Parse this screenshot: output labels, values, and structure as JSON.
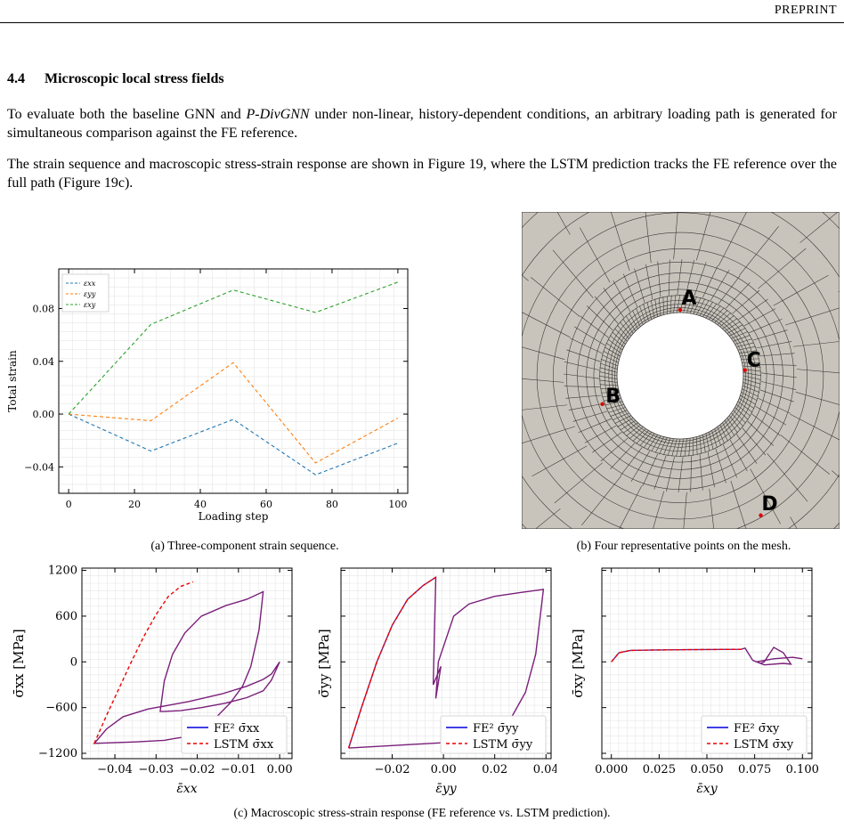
{
  "header": {
    "label": "PREPRINT"
  },
  "section": {
    "number": "4.4",
    "title": "Microscopic local stress fields"
  },
  "paragraphs": {
    "p1a": "To evaluate both the baseline GNN and ",
    "p1em": "P-DivGNN",
    "p1b": " under non-linear, history-dependent conditions, an arbitrary loading path is generated for simultaneous comparison against the FE reference.",
    "p2": "The strain sequence and macroscopic stress-strain response are shown in Figure 19, where the LSTM prediction tracks the FE reference over the full path (Figure 19c)."
  },
  "captions": {
    "a": "(a) Three-component strain sequence.",
    "b": "(b) Four representative points on the mesh.",
    "c": "(c) Macroscopic stress-strain response (FE reference vs. LSTM prediction)."
  },
  "mesh": {
    "colors": {
      "fill": "#c9c4bb",
      "line": "#3a3a3a",
      "marker": "#e00000"
    },
    "points": [
      {
        "label": "A",
        "angle_deg": 90
      },
      {
        "label": "B",
        "angle_deg": 200
      },
      {
        "label": "C",
        "angle_deg": 5
      },
      {
        "label": "D",
        "angle_deg": 300
      }
    ]
  },
  "chart_data": [
    {
      "id": "strain",
      "type": "line",
      "xlabel": "Loading step",
      "ylabel": "Total strain",
      "xlim": [
        -3,
        103
      ],
      "ylim": [
        -0.06,
        0.11
      ],
      "xticks": [
        0,
        20,
        40,
        60,
        80,
        100
      ],
      "xticklabels": [
        "0",
        "20",
        "40",
        "60",
        "80",
        "100"
      ],
      "yticks": [
        -0.04,
        0.0,
        0.04,
        0.08
      ],
      "yticklabels": [
        "−0.04",
        "0.00",
        "0.04",
        "0.08"
      ],
      "grid": true,
      "legend": "top-left",
      "x": [
        0,
        25,
        50,
        75,
        100
      ],
      "series": [
        {
          "name": "εxx",
          "color": "#1f77b4",
          "values": [
            0.0,
            -0.028,
            -0.004,
            -0.046,
            -0.022
          ]
        },
        {
          "name": "εyy",
          "color": "#ff7f0e",
          "values": [
            0.0,
            -0.005,
            0.039,
            -0.037,
            -0.003
          ]
        },
        {
          "name": "εxy",
          "color": "#2ca02c",
          "values": [
            0.0,
            0.068,
            0.094,
            0.077,
            0.1
          ]
        }
      ]
    },
    {
      "id": "sxx",
      "type": "line",
      "xlabel": "ε̄xx",
      "ylabel": "σ̄xx [MPa]",
      "xlim": [
        -0.048,
        0.003
      ],
      "ylim": [
        -1270,
        1230
      ],
      "xticks": [
        -0.04,
        -0.03,
        -0.02,
        -0.01,
        0.0
      ],
      "xticklabels": [
        "−0.04",
        "−0.03",
        "−0.02",
        "−0.01",
        "0.00"
      ],
      "yticks": [
        -1200,
        -600,
        0,
        600,
        1200
      ],
      "yticklabels": [
        "−1200",
        "−600",
        "0",
        "600",
        "1200"
      ],
      "grid": true,
      "legend": "bottom-right",
      "series": [
        {
          "name": "FE² σ̄xx",
          "color": "#0000dd",
          "style": "solid",
          "points": [
            [
              0,
              0
            ],
            [
              -0.002,
              -160
            ],
            [
              -0.004,
              -230
            ],
            [
              -0.008,
              -320
            ],
            [
              -0.014,
              -420
            ],
            [
              -0.022,
              -520
            ],
            [
              -0.032,
              -620
            ],
            [
              -0.038,
              -720
            ],
            [
              -0.042,
              -880
            ],
            [
              -0.045,
              -1070
            ],
            [
              -0.035,
              -1050
            ],
            [
              -0.028,
              -1030
            ],
            [
              -0.025,
              -1000
            ],
            [
              -0.022,
              -980
            ],
            [
              -0.02,
              -920
            ],
            [
              -0.016,
              -760
            ],
            [
              -0.012,
              -540
            ],
            [
              -0.009,
              -320
            ],
            [
              -0.007,
              -60
            ],
            [
              -0.005,
              420
            ],
            [
              -0.004,
              920
            ],
            [
              -0.008,
              820
            ],
            [
              -0.013,
              740
            ],
            [
              -0.019,
              600
            ],
            [
              -0.023,
              380
            ],
            [
              -0.026,
              100
            ],
            [
              -0.028,
              -250
            ],
            [
              -0.029,
              -650
            ],
            [
              -0.028,
              -650
            ],
            [
              -0.024,
              -640
            ],
            [
              -0.019,
              -600
            ],
            [
              -0.013,
              -540
            ],
            [
              -0.008,
              -470
            ],
            [
              -0.004,
              -380
            ],
            [
              -0.002,
              -240
            ],
            [
              0,
              0
            ]
          ]
        },
        {
          "name": "LSTM σ̄xx",
          "color": "#ee0000",
          "style": "dashed",
          "points": [
            [
              -0.045,
              -1070
            ],
            [
              -0.042,
              -700
            ],
            [
              -0.039,
              -350
            ],
            [
              -0.036,
              0
            ],
            [
              -0.033,
              330
            ],
            [
              -0.03,
              620
            ],
            [
              -0.027,
              860
            ],
            [
              -0.024,
              990
            ],
            [
              -0.021,
              1050
            ]
          ]
        }
      ]
    },
    {
      "id": "syy",
      "type": "line",
      "xlabel": "ε̄yy",
      "ylabel": "σ̄yy [MPa]",
      "xlim": [
        -0.04,
        0.042
      ],
      "ylim": [
        -1270,
        1230
      ],
      "xticks": [
        -0.02,
        0.0,
        0.02,
        0.04
      ],
      "xticklabels": [
        "−0.02",
        "0.00",
        "0.02",
        "0.04"
      ],
      "yticks": [
        -1200,
        -600,
        0,
        600,
        1200
      ],
      "yticklabels": [
        "",
        "",
        "",
        "",
        ""
      ],
      "grid": true,
      "legend": "bottom-right",
      "series": [
        {
          "name": "FE² σ̄yy",
          "color": "#0000dd",
          "style": "solid",
          "points": [
            [
              -0.037,
              -1130
            ],
            [
              -0.032,
              -600
            ],
            [
              -0.026,
              0
            ],
            [
              -0.02,
              480
            ],
            [
              -0.014,
              820
            ],
            [
              -0.008,
              1000
            ],
            [
              -0.003,
              1110
            ],
            [
              -0.004,
              -300
            ],
            [
              -0.001,
              -60
            ],
            [
              -0.003,
              -480
            ],
            [
              -0.002,
              0
            ],
            [
              0.004,
              600
            ],
            [
              0.01,
              760
            ],
            [
              0.02,
              860
            ],
            [
              0.03,
              910
            ],
            [
              0.039,
              950
            ],
            [
              0.036,
              100
            ],
            [
              0.032,
              -400
            ],
            [
              0.026,
              -760
            ],
            [
              0.02,
              -900
            ],
            [
              0.01,
              -1000
            ],
            [
              0.0,
              -1060
            ],
            [
              -0.037,
              -1130
            ]
          ]
        },
        {
          "name": "LSTM σ̄yy",
          "color": "#ee0000",
          "style": "dashed",
          "points": [
            [
              -0.037,
              -1130
            ],
            [
              -0.032,
              -600
            ],
            [
              -0.026,
              0
            ],
            [
              -0.02,
              480
            ],
            [
              -0.014,
              820
            ],
            [
              -0.008,
              1000
            ],
            [
              -0.003,
              1110
            ]
          ]
        }
      ]
    },
    {
      "id": "sxy",
      "type": "line",
      "xlabel": "ε̄xy",
      "ylabel": "σ̄xy [MPa]",
      "xlim": [
        -0.005,
        0.105
      ],
      "ylim": [
        -1270,
        1230
      ],
      "xticks": [
        0.0,
        0.025,
        0.05,
        0.075,
        0.1
      ],
      "xticklabels": [
        "0.000",
        "0.025",
        "0.050",
        "0.075",
        "0.100"
      ],
      "yticks": [
        -1200,
        -600,
        0,
        600,
        1200
      ],
      "yticklabels": [
        "",
        "",
        "",
        "",
        ""
      ],
      "grid": true,
      "legend": "bottom-right",
      "series": [
        {
          "name": "FE² σ̄xy",
          "color": "#0000dd",
          "style": "solid",
          "points": [
            [
              0,
              0
            ],
            [
              0.004,
              120
            ],
            [
              0.01,
              150
            ],
            [
              0.02,
              155
            ],
            [
              0.04,
              160
            ],
            [
              0.068,
              165
            ],
            [
              0.07,
              180
            ],
            [
              0.074,
              20
            ],
            [
              0.078,
              -20
            ],
            [
              0.08,
              0
            ],
            [
              0.085,
              190
            ],
            [
              0.09,
              120
            ],
            [
              0.094,
              -30
            ],
            [
              0.09,
              -20
            ],
            [
              0.08,
              -40
            ],
            [
              0.076,
              0
            ],
            [
              0.085,
              40
            ],
            [
              0.095,
              60
            ],
            [
              0.1,
              40
            ]
          ]
        },
        {
          "name": "LSTM σ̄xy",
          "color": "#ee0000",
          "style": "dashed",
          "points": [
            [
              0,
              0
            ],
            [
              0.004,
              120
            ],
            [
              0.01,
              150
            ],
            [
              0.02,
              155
            ],
            [
              0.04,
              160
            ],
            [
              0.068,
              165
            ]
          ]
        }
      ]
    }
  ]
}
